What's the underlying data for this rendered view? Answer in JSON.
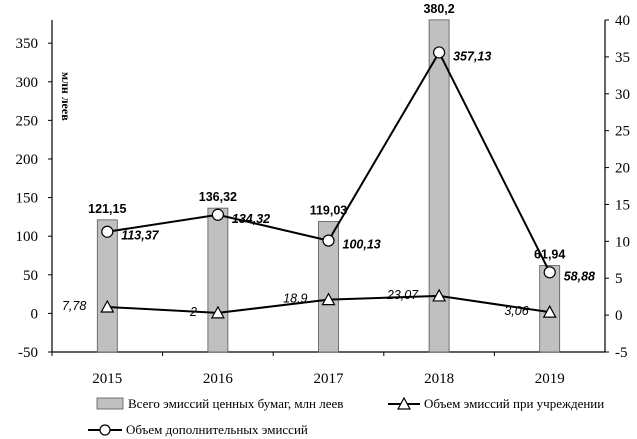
{
  "chart_data": {
    "type": "bar+line",
    "categories": [
      "2015",
      "2016",
      "2017",
      "2018",
      "2019"
    ],
    "ylabel": "млн леев",
    "ylim": [
      -50,
      380
    ],
    "y_ticks": [
      "350",
      "300",
      "250",
      "200",
      "150",
      "100",
      "50",
      "0",
      "-50"
    ],
    "y2lim": [
      -5,
      40
    ],
    "y2_ticks": [
      "40",
      "35",
      "30",
      "25",
      "20",
      "15",
      "10",
      "5",
      "0",
      "-5"
    ],
    "grid": false,
    "legend_position": "bottom",
    "series": [
      {
        "name": "Всего эмиссий ценных бумаг, млн леев",
        "type": "bar",
        "axis": "left",
        "color": "#c0c0c0",
        "values": [
          121.15,
          136.32,
          119.03,
          380.2,
          61.94
        ],
        "labels": [
          "121,15",
          "136,32",
          "119,03",
          "380,2",
          "61,94"
        ]
      },
      {
        "name": "Объем эмиссий при учреждении",
        "type": "line",
        "marker": "triangle",
        "axis": "right",
        "values": [
          1.1,
          0.3,
          2.1,
          2.6,
          0.4
        ],
        "labels": [
          "7,78",
          "2",
          "18,9",
          "23,07",
          "3,06"
        ]
      },
      {
        "name": "Объем дополнительных эмиссий",
        "type": "line",
        "marker": "circle",
        "axis": "right",
        "values": [
          11.3,
          13.6,
          10.1,
          35.6,
          5.8
        ],
        "labels": [
          "113,37",
          "134,32",
          "100,13",
          "357,13",
          "58,88"
        ]
      }
    ]
  }
}
